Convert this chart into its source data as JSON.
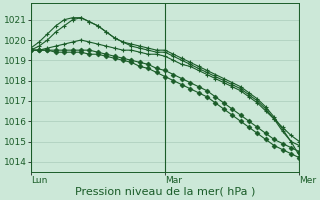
{
  "background_color": "#cce8d8",
  "grid_color": "#aaccbb",
  "line_color": "#1a5c28",
  "xlabel": "Pression niveau de la mer( hPa )",
  "xlabel_fontsize": 8,
  "tick_label_color": "#1a5c28",
  "tick_fontsize": 6.5,
  "ylim": [
    1013.5,
    1021.8
  ],
  "yticks": [
    1014,
    1015,
    1016,
    1017,
    1018,
    1019,
    1020,
    1021
  ],
  "day_labels": [
    "Lun",
    "Mar",
    "Mer"
  ],
  "day_positions": [
    0,
    16,
    32
  ],
  "lines": [
    {
      "x": [
        0,
        1,
        2,
        3,
        4,
        5,
        6,
        7,
        8,
        9,
        10,
        11,
        12,
        13,
        14,
        15,
        16,
        17,
        18,
        19,
        20,
        21,
        22,
        23,
        24,
        25,
        26,
        27,
        28,
        29,
        30,
        31,
        32
      ],
      "y": [
        1019.6,
        1019.9,
        1020.3,
        1020.7,
        1021.0,
        1021.1,
        1021.1,
        1020.9,
        1020.7,
        1020.4,
        1020.1,
        1019.9,
        1019.8,
        1019.7,
        1019.6,
        1019.5,
        1019.5,
        1019.3,
        1019.1,
        1018.9,
        1018.7,
        1018.5,
        1018.3,
        1018.1,
        1017.9,
        1017.7,
        1017.4,
        1017.1,
        1016.7,
        1016.2,
        1015.6,
        1015.0,
        1014.3
      ],
      "marker": "+"
    },
    {
      "x": [
        0,
        1,
        2,
        3,
        4,
        5,
        6,
        7,
        8,
        9,
        10,
        11,
        12,
        13,
        14,
        15,
        16,
        17,
        18,
        19,
        20,
        21,
        22,
        23,
        24,
        25,
        26,
        27,
        28,
        29,
        30,
        31,
        32
      ],
      "y": [
        1019.5,
        1019.7,
        1020.0,
        1020.4,
        1020.7,
        1021.0,
        1021.1,
        1020.9,
        1020.7,
        1020.4,
        1020.1,
        1019.9,
        1019.7,
        1019.6,
        1019.5,
        1019.4,
        1019.4,
        1019.2,
        1019.0,
        1018.8,
        1018.6,
        1018.4,
        1018.2,
        1018.0,
        1017.8,
        1017.6,
        1017.3,
        1017.0,
        1016.6,
        1016.1,
        1015.5,
        1015.0,
        1014.8
      ],
      "marker": "+"
    },
    {
      "x": [
        0,
        1,
        2,
        3,
        4,
        5,
        6,
        7,
        8,
        9,
        10,
        11,
        12,
        13,
        14,
        15,
        16,
        17,
        18,
        19,
        20,
        21,
        22,
        23,
        24,
        25,
        26,
        27,
        28,
        29,
        30,
        31,
        32
      ],
      "y": [
        1019.5,
        1019.5,
        1019.6,
        1019.7,
        1019.8,
        1019.9,
        1020.0,
        1019.9,
        1019.8,
        1019.7,
        1019.6,
        1019.5,
        1019.5,
        1019.4,
        1019.3,
        1019.3,
        1019.2,
        1019.0,
        1018.8,
        1018.7,
        1018.5,
        1018.3,
        1018.1,
        1017.9,
        1017.7,
        1017.5,
        1017.2,
        1016.9,
        1016.5,
        1016.1,
        1015.7,
        1015.3,
        1015.0
      ],
      "marker": "+"
    },
    {
      "x": [
        0,
        1,
        2,
        3,
        4,
        5,
        6,
        7,
        8,
        9,
        10,
        11,
        12,
        13,
        14,
        15,
        16,
        17,
        18,
        19,
        20,
        21,
        22,
        23,
        24,
        25,
        26,
        27,
        28,
        29,
        30,
        31,
        32
      ],
      "y": [
        1019.5,
        1019.5,
        1019.5,
        1019.5,
        1019.5,
        1019.5,
        1019.5,
        1019.5,
        1019.4,
        1019.3,
        1019.2,
        1019.1,
        1019.0,
        1018.9,
        1018.8,
        1018.6,
        1018.5,
        1018.3,
        1018.1,
        1017.9,
        1017.7,
        1017.5,
        1017.2,
        1016.9,
        1016.6,
        1016.3,
        1016.0,
        1015.7,
        1015.4,
        1015.1,
        1014.9,
        1014.7,
        1014.5
      ],
      "marker": "D"
    },
    {
      "x": [
        0,
        1,
        2,
        3,
        4,
        5,
        6,
        7,
        8,
        9,
        10,
        11,
        12,
        13,
        14,
        15,
        16,
        17,
        18,
        19,
        20,
        21,
        22,
        23,
        24,
        25,
        26,
        27,
        28,
        29,
        30,
        31,
        32
      ],
      "y": [
        1019.5,
        1019.5,
        1019.5,
        1019.4,
        1019.4,
        1019.4,
        1019.4,
        1019.3,
        1019.3,
        1019.2,
        1019.1,
        1019.0,
        1018.9,
        1018.7,
        1018.6,
        1018.4,
        1018.2,
        1018.0,
        1017.8,
        1017.6,
        1017.4,
        1017.2,
        1016.9,
        1016.6,
        1016.3,
        1016.0,
        1015.7,
        1015.4,
        1015.1,
        1014.8,
        1014.6,
        1014.4,
        1014.2
      ],
      "marker": "D"
    }
  ]
}
